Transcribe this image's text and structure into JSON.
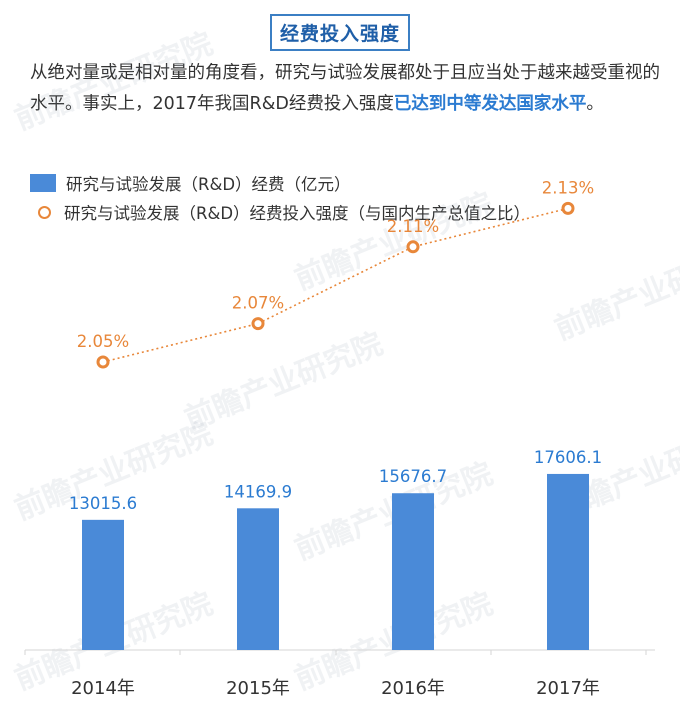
{
  "title": "经费投入强度",
  "description": {
    "text": "从绝对量或是相对量的角度看，研究与试验发展都处于且应当处于越来越受重视的水平。事实上，2017年我国R&D经费投入强度",
    "highlight": "已达到中等发达国家水平",
    "end": "。"
  },
  "legend": {
    "bar": "研究与试验发展（R&D）经费（亿元）",
    "line": "研究与试验发展（R&D）经费投入强度（与国内生产总值之比）"
  },
  "watermark": "前瞻产业研究院",
  "colors": {
    "bar": "#4a8ad8",
    "line": "#e8873a",
    "bar_label": "#2b7bd1",
    "title": "#1f5fa8"
  },
  "chart_data": {
    "type": "bar",
    "categories": [
      "2014年",
      "2015年",
      "2016年",
      "2017年"
    ],
    "series": [
      {
        "type": "bar",
        "values": [
          13015.6,
          14169.9,
          15676.7,
          17606.1
        ],
        "labels": [
          "13015.6",
          "14169.9",
          "15676.7",
          "17606.1"
        ]
      },
      {
        "type": "line",
        "values": [
          2.05,
          2.07,
          2.11,
          2.13
        ],
        "labels": [
          "2.05%",
          "2.07%",
          "2.11%",
          "2.13%"
        ]
      }
    ],
    "bar_range": [
      0,
      48000
    ],
    "line_range": [
      1.9,
      2.15
    ],
    "grid": false,
    "legend_position": "top-left"
  }
}
